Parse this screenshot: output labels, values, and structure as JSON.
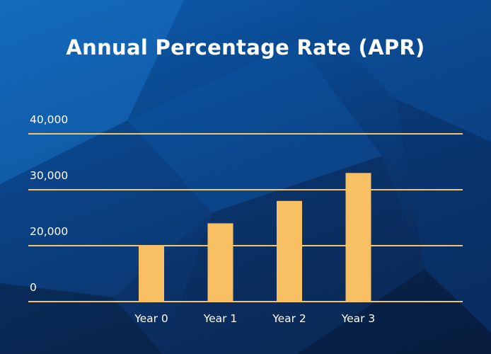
{
  "chart_data": {
    "type": "bar",
    "title": "Annual Percentage Rate (APR)",
    "categories": [
      "Year 0",
      "Year 1",
      "Year 2",
      "Year 3"
    ],
    "values": [
      20000,
      24000,
      28000,
      33000
    ],
    "yticks": [
      {
        "value": 0,
        "label": "0"
      },
      {
        "value": 20000,
        "label": "20,000"
      },
      {
        "value": 30000,
        "label": "30,000"
      },
      {
        "value": 40000,
        "label": "40,000"
      }
    ],
    "grid": true,
    "bar_color": "#f8c063",
    "grid_color": "#f2c46e",
    "xlabel": "",
    "ylabel": ""
  }
}
